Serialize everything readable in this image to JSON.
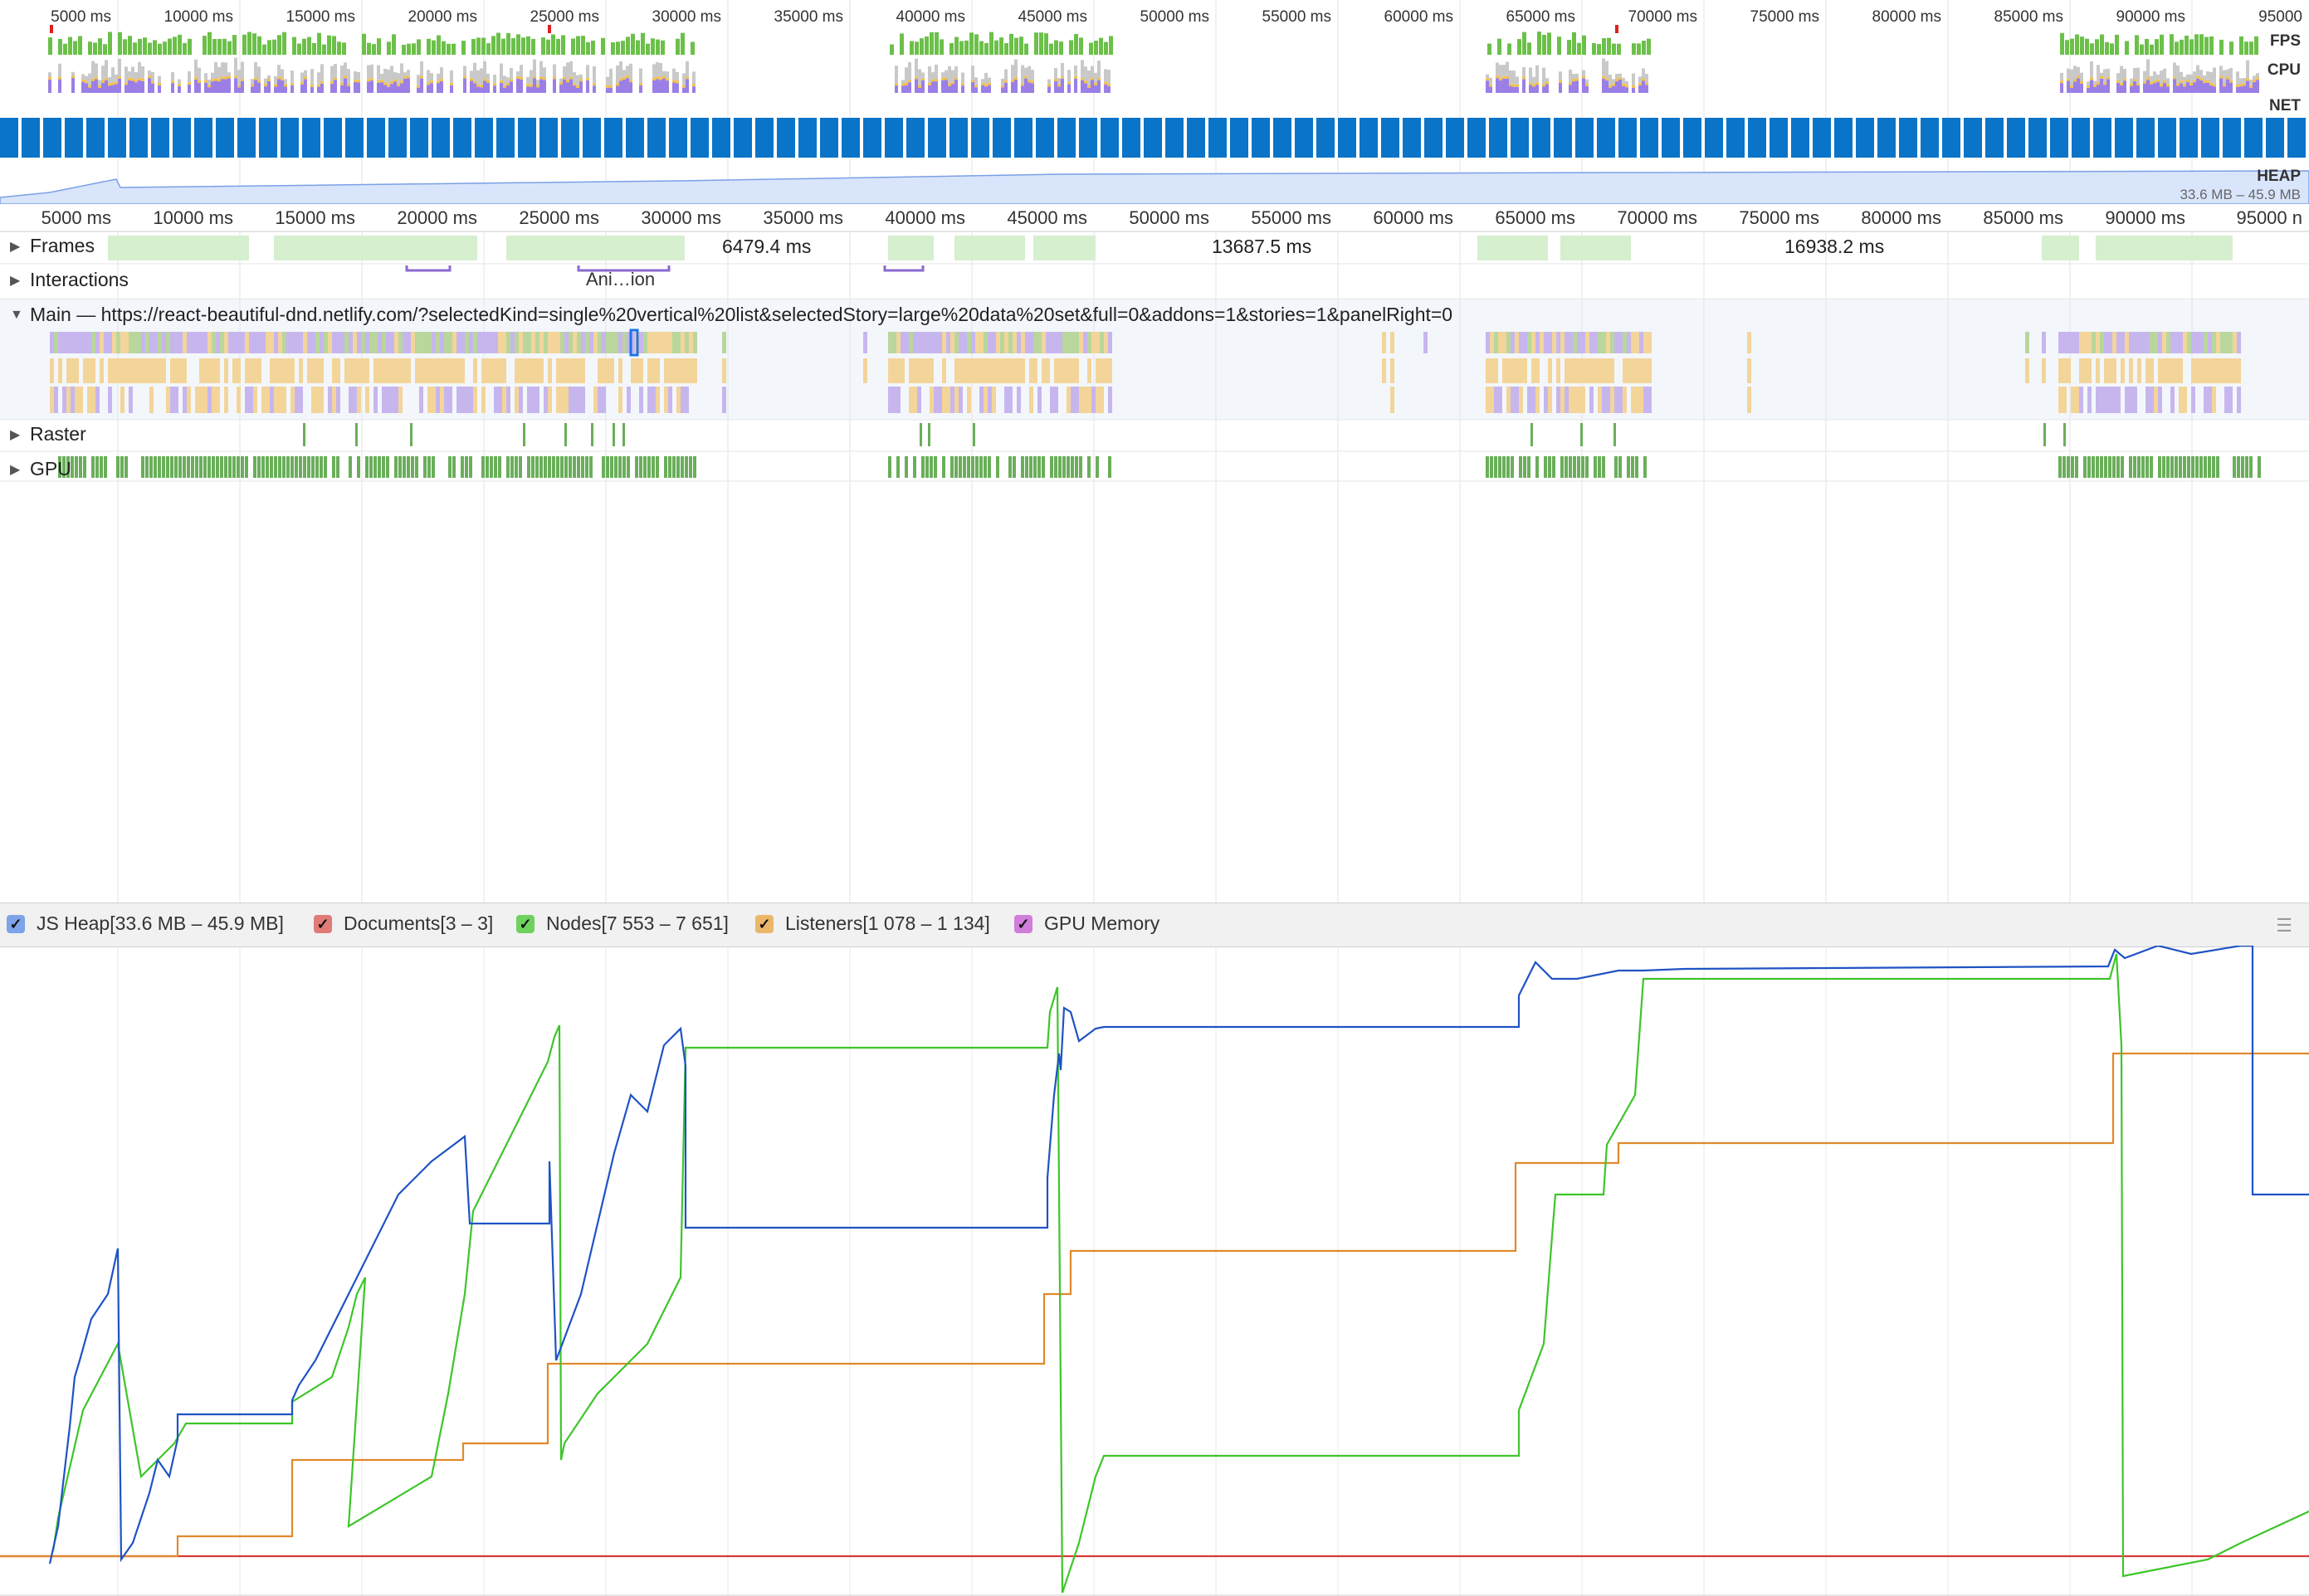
{
  "overview": {
    "ticks": [
      "5000 ms",
      "10000 ms",
      "15000 ms",
      "20000 ms",
      "25000 ms",
      "30000 ms",
      "35000 ms",
      "40000 ms",
      "45000 ms",
      "50000 ms",
      "55000 ms",
      "60000 ms",
      "65000 ms",
      "70000 ms",
      "75000 ms",
      "80000 ms",
      "85000 ms",
      "90000 ms",
      "95000"
    ],
    "labels": {
      "fps": "FPS",
      "cpu": "CPU",
      "net": "NET",
      "heap": "HEAP"
    },
    "heap_range": "33.6 MB – 45.9 MB"
  },
  "ruler": {
    "ticks": [
      "5000 ms",
      "10000 ms",
      "15000 ms",
      "20000 ms",
      "25000 ms",
      "30000 ms",
      "35000 ms",
      "40000 ms",
      "45000 ms",
      "50000 ms",
      "55000 ms",
      "60000 ms",
      "65000 ms",
      "70000 ms",
      "75000 ms",
      "80000 ms",
      "85000 ms",
      "90000 ms",
      "95000 n"
    ]
  },
  "tracks": {
    "frames": {
      "label": "Frames",
      "durations": [
        "6479.4 ms",
        "13687.5 ms",
        "16938.2 ms"
      ]
    },
    "interactions": {
      "label": "Interactions",
      "item": "Ani…ion"
    },
    "main": {
      "label": "Main — https://react-beautiful-dnd.netlify.com/?selectedKind=single%20vertical%20list&selectedStory=large%20data%20set&full=0&addons=1&stories=1&panelRight=0"
    },
    "raster": {
      "label": "Raster"
    },
    "gpu": {
      "label": "GPU"
    }
  },
  "legend": {
    "items": [
      {
        "label": "JS Heap[33.6 MB – 45.9 MB]",
        "color": "#3b6fd6"
      },
      {
        "label": "Documents[3 – 3]",
        "color": "#d9534f"
      },
      {
        "label": "Nodes[7 553 – 7 651]",
        "color": "#4cbb3c"
      },
      {
        "label": "Listeners[1 078 – 1 134]",
        "color": "#e5a03c"
      },
      {
        "label": "GPU Memory",
        "color": "#c34fd1"
      }
    ],
    "menu_icon": "hamburger-icon"
  },
  "colors": {
    "fps": "#6cc04a",
    "cpu_scripting": "#9b7fe6",
    "cpu_render": "#f2c14e",
    "net": "#0a74c8",
    "heap_fill": "#d9e5fb",
    "frames": "#d6efcf",
    "task_yellow": "#f3d59a",
    "task_purple": "#c7b6ee",
    "gpu": "#6aae5a",
    "line_heap": "#1f53c4",
    "line_nodes": "#3ec52a",
    "line_listeners": "#e0892b",
    "line_documents": "#d63a3a"
  }
}
